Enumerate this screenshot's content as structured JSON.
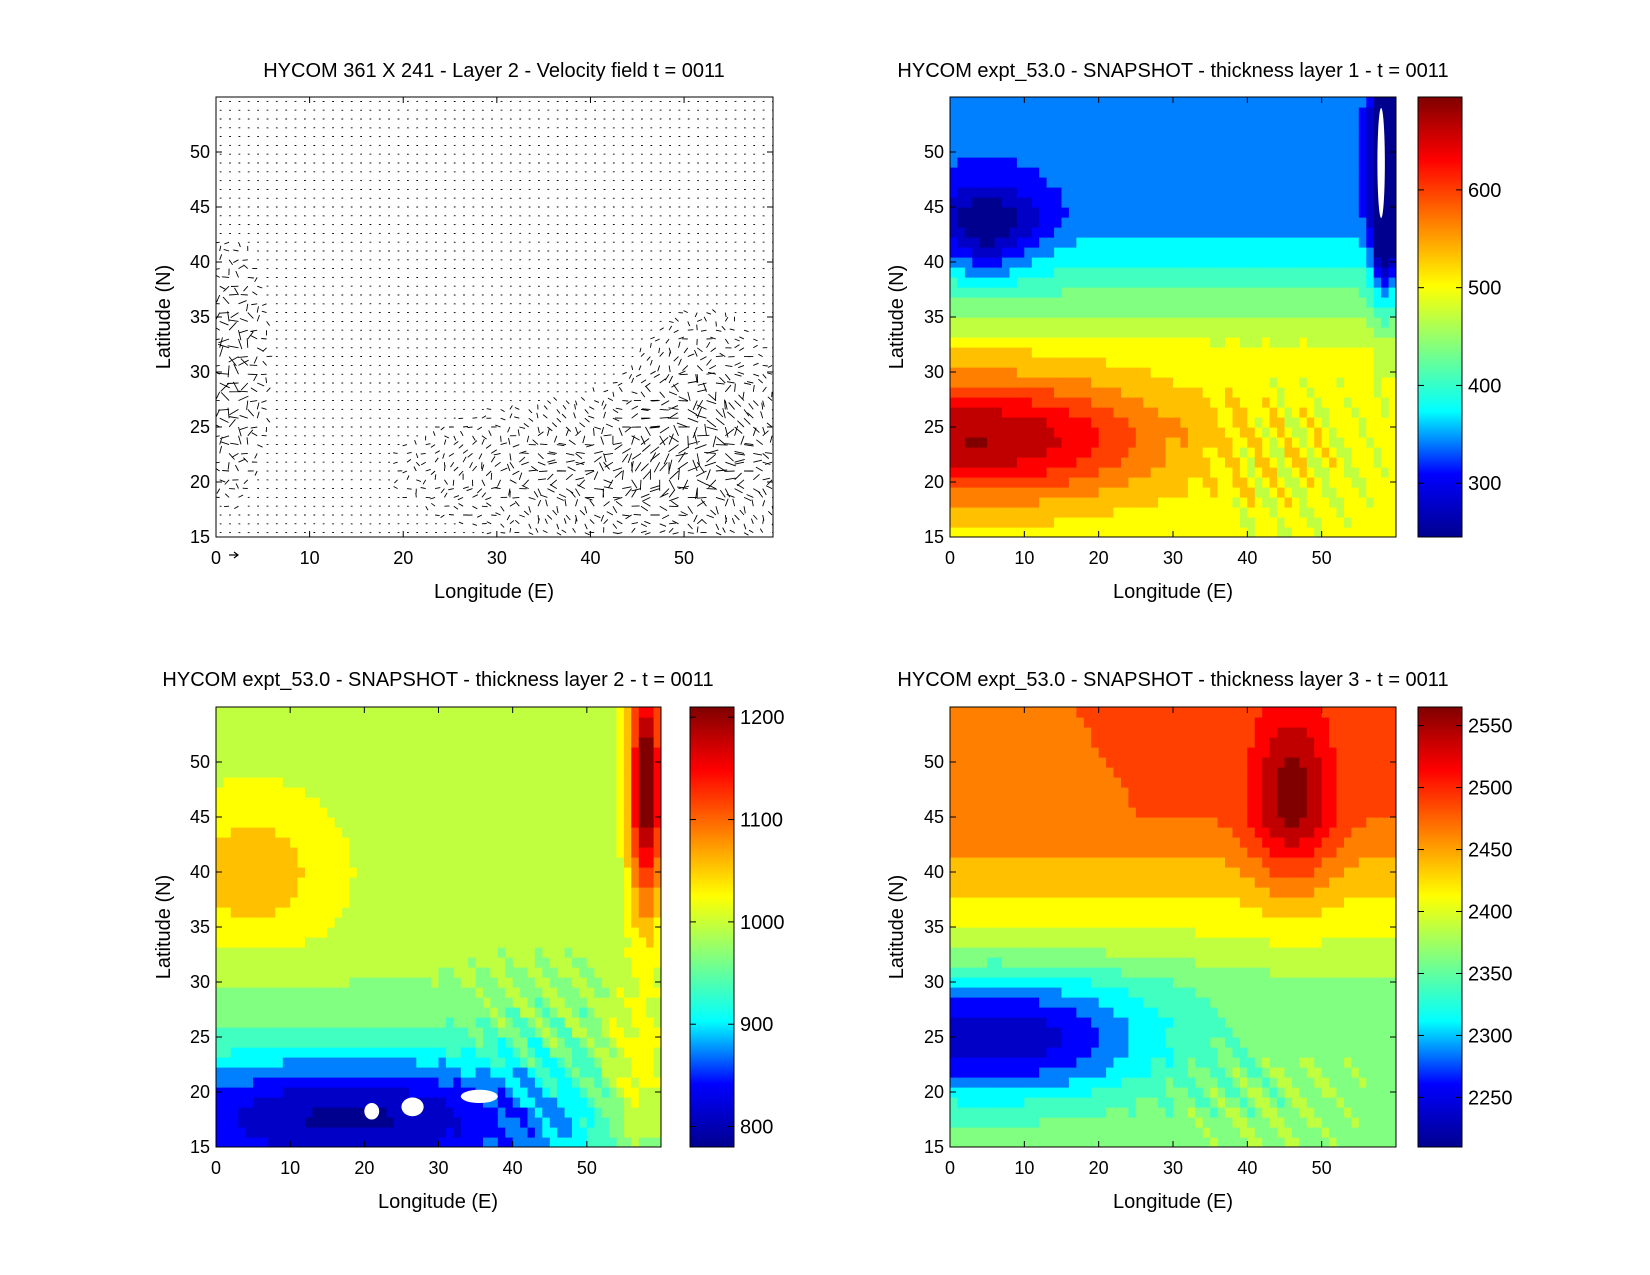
{
  "figure": {
    "colormap": [
      "#00008f",
      "#0000ff",
      "#00ffff",
      "#80ff80",
      "#ffff00",
      "#ff8000",
      "#ff0000",
      "#800000"
    ],
    "contour_line_color": "#000000",
    "missing_color": "#ffffff"
  },
  "chart_data": [
    {
      "type": "vector",
      "title": "HYCOM 361 X 241 - Layer 2 - Velocity field  t = 0011",
      "xlabel": "Longitude (E)",
      "ylabel": "Latitude (N)",
      "xlim": [
        0,
        59.5
      ],
      "ylim": [
        15,
        55
      ],
      "xticks": [
        0,
        10,
        20,
        30,
        40,
        50
      ],
      "yticks": [
        15,
        20,
        25,
        30,
        35,
        40,
        45,
        50
      ],
      "grid_size": "361 X 241",
      "layer": 2,
      "t": "0011",
      "arrow_color": "#000000",
      "features": [
        {
          "region": "western boundary",
          "lon": [
            0,
            5
          ],
          "lat": [
            22,
            38
          ],
          "description": "strong irregular flow"
        },
        {
          "region": "southern and south-eastern eddies",
          "lon": [
            20,
            56
          ],
          "lat": [
            15,
            30
          ],
          "description": "meandering eddy field"
        }
      ]
    },
    {
      "type": "contour",
      "title": "HYCOM expt_53.0 - SNAPSHOT - thickness layer 1 - t = 0011",
      "xlabel": "Longitude (E)",
      "ylabel": "Latitude (N)",
      "xlim": [
        0,
        60
      ],
      "ylim": [
        15,
        55
      ],
      "xticks": [
        0,
        10,
        20,
        30,
        40,
        50
      ],
      "yticks": [
        15,
        20,
        25,
        30,
        35,
        40,
        45,
        50
      ],
      "colorbar": {
        "min": 245,
        "max": 695,
        "ticks": [
          300,
          400,
          500,
          600
        ]
      },
      "layer": 1,
      "t": "0011",
      "features": [
        {
          "type": "max",
          "lon": 3,
          "lat": 24,
          "value": 690
        },
        {
          "type": "min",
          "lon": 4,
          "lat": 43,
          "value": 270
        },
        {
          "type": "min",
          "lon": 58,
          "lat": 48,
          "value": 255
        },
        {
          "type": "missing",
          "lon": [
            57.5,
            58.5
          ],
          "lat": [
            44,
            54
          ]
        }
      ]
    },
    {
      "type": "contour",
      "title": "HYCOM expt_53.0 - SNAPSHOT - thickness layer 2 - t = 0011",
      "xlabel": "Longitude (E)",
      "ylabel": "Latitude (N)",
      "xlim": [
        0,
        60
      ],
      "ylim": [
        15,
        55
      ],
      "xticks": [
        0,
        10,
        20,
        30,
        40,
        50
      ],
      "yticks": [
        15,
        20,
        25,
        30,
        35,
        40,
        45,
        50
      ],
      "colorbar": {
        "min": 780,
        "max": 1210,
        "ticks": [
          800,
          900,
          1000,
          1100,
          1200
        ]
      },
      "layer": 2,
      "t": "0011",
      "features": [
        {
          "type": "min",
          "lon": 20,
          "lat": 18,
          "value": 790
        },
        {
          "type": "max",
          "lon": 58,
          "lat": 48,
          "value": 1200
        },
        {
          "type": "max",
          "lon": 6,
          "lat": 40,
          "value": 1050
        },
        {
          "type": "missing",
          "lon": [
            20,
            22
          ],
          "lat": [
            17.5,
            19
          ]
        },
        {
          "type": "missing",
          "lon": [
            25,
            28
          ],
          "lat": [
            17.8,
            19.5
          ]
        },
        {
          "type": "missing",
          "lon": [
            33,
            38
          ],
          "lat": [
            19,
            20.2
          ]
        }
      ]
    },
    {
      "type": "contour",
      "title": "HYCOM expt_53.0 - SNAPSHOT - thickness layer 3 - t = 0011",
      "xlabel": "Longitude (E)",
      "ylabel": "Latitude (N)",
      "xlim": [
        0,
        60
      ],
      "ylim": [
        15,
        55
      ],
      "xticks": [
        0,
        10,
        20,
        30,
        40,
        50
      ],
      "yticks": [
        15,
        20,
        25,
        30,
        35,
        40,
        45,
        50
      ],
      "colorbar": {
        "min": 2210,
        "max": 2565,
        "ticks": [
          2250,
          2300,
          2350,
          2400,
          2450,
          2500,
          2550
        ]
      },
      "layer": 3,
      "t": "0011",
      "features": [
        {
          "type": "min",
          "lon": 4,
          "lat": 24,
          "value": 2215
        },
        {
          "type": "max",
          "lon": 46,
          "lat": 47,
          "value": 2560
        }
      ]
    }
  ]
}
